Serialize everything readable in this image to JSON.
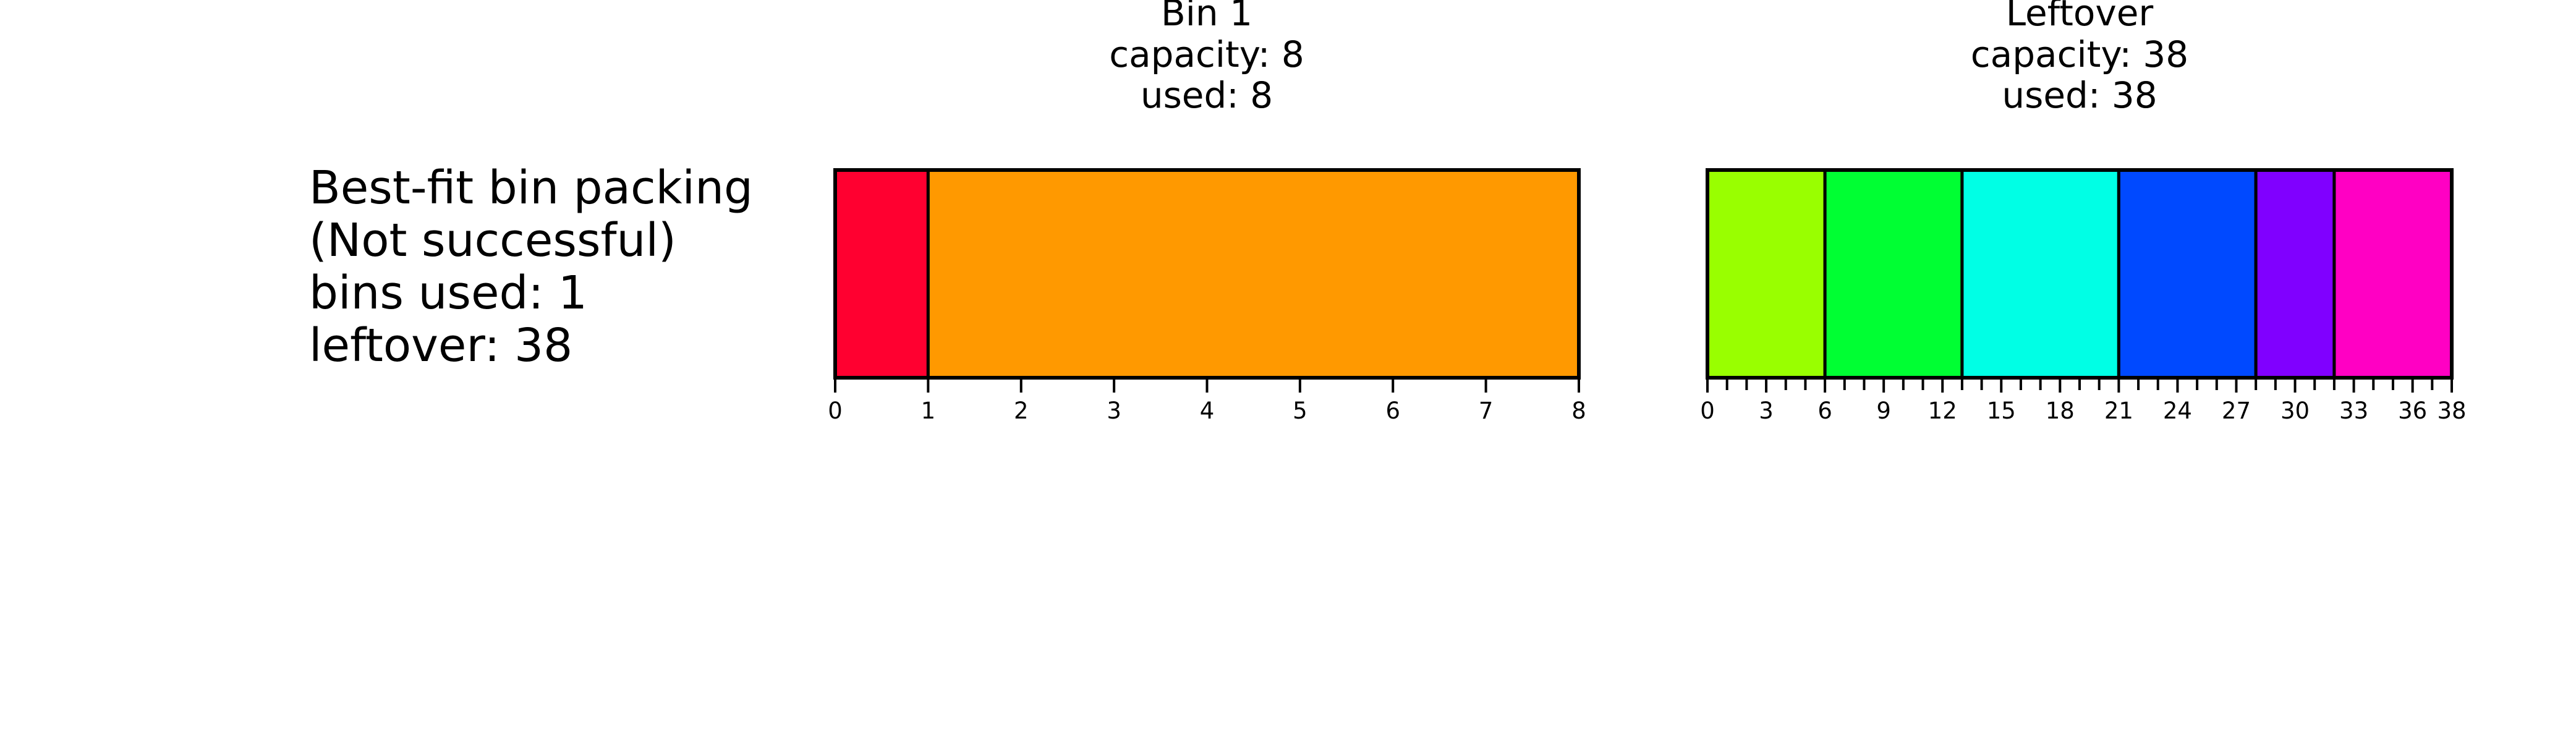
{
  "summary": {
    "line1": "Best-fit bin packing",
    "line2": "(Not successful)",
    "line3": "bins used: 1",
    "line4": "leftover: 38"
  },
  "bins": [
    {
      "id": "bin-1",
      "title": "Bin 1",
      "capacity_label": "capacity: 8",
      "used_label": "used: 8",
      "capacity": 8,
      "used": 8,
      "tick_step": 1,
      "labeled_ticks": [
        0,
        1,
        2,
        3,
        4,
        5,
        6,
        7,
        8
      ],
      "items": [
        {
          "start": 0,
          "size": 1,
          "color": "#ff0030"
        },
        {
          "start": 1,
          "size": 7,
          "color": "#ff9900"
        }
      ]
    },
    {
      "id": "leftover",
      "title": "Leftover",
      "capacity_label": "capacity: 38",
      "used_label": "used: 38",
      "capacity": 38,
      "used": 38,
      "tick_step": 1,
      "labeled_ticks": [
        0,
        3,
        6,
        9,
        12,
        15,
        18,
        21,
        24,
        27,
        30,
        33,
        36,
        38
      ],
      "items": [
        {
          "start": 0,
          "size": 6,
          "color": "#99ff00"
        },
        {
          "start": 6,
          "size": 7,
          "color": "#00ff33"
        },
        {
          "start": 13,
          "size": 8,
          "color": "#00ffe5"
        },
        {
          "start": 21,
          "size": 7,
          "color": "#0049ff"
        },
        {
          "start": 28,
          "size": 4,
          "color": "#8000ff"
        },
        {
          "start": 32,
          "size": 6,
          "color": "#ff00c3"
        }
      ]
    }
  ]
}
